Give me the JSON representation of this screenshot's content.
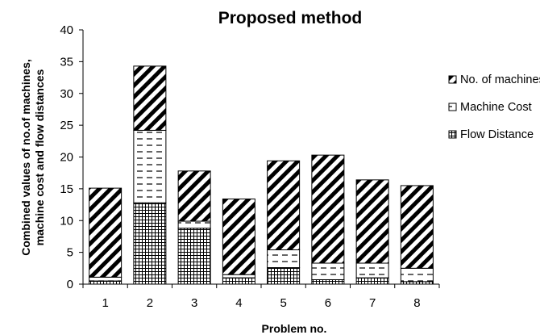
{
  "chart_data": {
    "type": "bar",
    "stacked": true,
    "title": "Proposed method",
    "xlabel": "Problem no.",
    "ylabel_lines": [
      "Combined values of no.of machines,",
      "machine cost and flow distances"
    ],
    "categories": [
      "1",
      "2",
      "3",
      "4",
      "5",
      "6",
      "7",
      "8"
    ],
    "ylim": [
      0,
      40
    ],
    "yticks": [
      0,
      5,
      10,
      15,
      20,
      25,
      30,
      35,
      40
    ],
    "grid": false,
    "legend_position": "right",
    "series": [
      {
        "name": "Flow Distance",
        "pattern": "grid",
        "values": [
          0.5,
          12.8,
          8.8,
          1.0,
          2.6,
          0.7,
          1.0,
          0.4
        ]
      },
      {
        "name": "Machine Cost",
        "pattern": "dashes",
        "values": [
          0.6,
          11.4,
          1.1,
          0.5,
          2.8,
          2.6,
          2.3,
          2.1
        ]
      },
      {
        "name": "No. of machines",
        "pattern": "diagonal",
        "values": [
          14.0,
          10.1,
          7.9,
          11.9,
          14.0,
          17.0,
          13.1,
          13.0
        ]
      }
    ],
    "colors": {
      "stroke": "#000000",
      "fill": "#ffffff"
    }
  }
}
